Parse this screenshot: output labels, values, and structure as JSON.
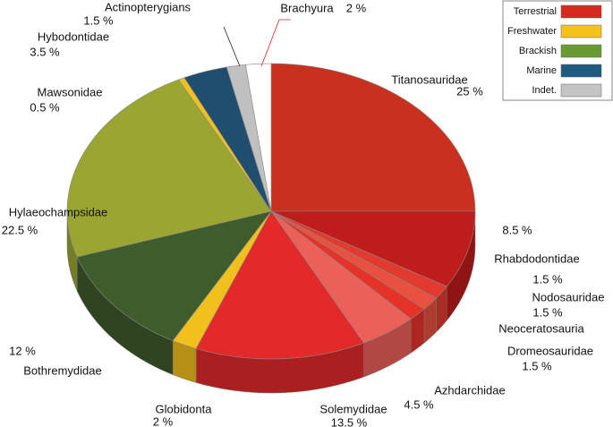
{
  "chart_data": {
    "type": "pie3d",
    "categories": [
      "Titanosauridae",
      "Rhabdodontidae",
      "Nodosauridae",
      "Neoceratosauria",
      "Dromeosauridae",
      "Azhdarchidae",
      "Solemydidae",
      "Globidonta",
      "Bothremydidae",
      "Hylaeochampsidae",
      "Mawsonidae",
      "Hybodontidae",
      "Actinopterygians",
      "Brachyura"
    ],
    "values": [
      25,
      8.5,
      1.5,
      1.5,
      1.5,
      4.5,
      13.5,
      2,
      12,
      22.5,
      0.5,
      3.5,
      1.5,
      2
    ],
    "value_labels": [
      "25 %",
      "8.5 %",
      "1.5 %",
      "1.5 %",
      "1.5 %",
      "4.5 %",
      "13.5 %",
      "2 %",
      "12 %",
      "22.5 %",
      "0.5 %",
      "3.5 %",
      "1.5 %",
      "2 %"
    ],
    "colors": [
      "#c8311f",
      "#bf1c1c",
      "#e23a2e",
      "#e8503f",
      "#e6332a",
      "#ec605a",
      "#e3292a",
      "#f2c01c",
      "#3f5c2c",
      "#9aa532",
      "#f2c01c",
      "#1f4e6e",
      "#c0c0c0",
      "#ffffff"
    ],
    "legend": [
      {
        "name": "Terrestrial",
        "color": "#d42a20"
      },
      {
        "name": "Freshwater",
        "color": "#f4c21a"
      },
      {
        "name": "Brackish",
        "color": "#6a9a34"
      },
      {
        "name": "Marine",
        "color": "#1f5b80"
      },
      {
        "name": "Indet.",
        "color": "#c4c4c4"
      }
    ]
  }
}
